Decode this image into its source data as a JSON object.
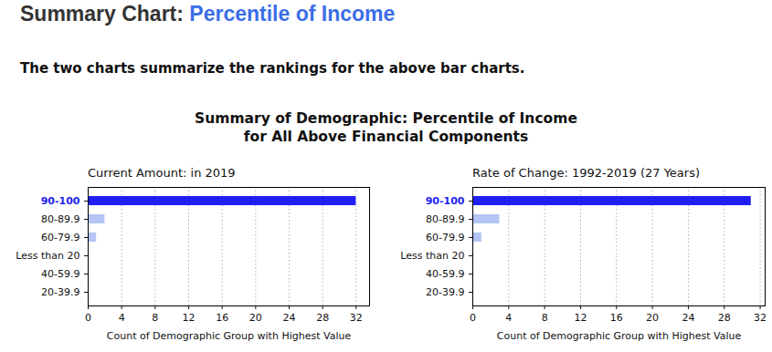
{
  "header": {
    "title": "Summary Chart:",
    "title_highlight": "Percentile of Income",
    "subtitle": "The two charts summarize the rankings for the above bar charts."
  },
  "figure_title": "Summary of Demographic: Percentile of Income\nfor All Above Financial Components",
  "chart_data": [
    {
      "type": "bar",
      "orientation": "horizontal",
      "title": "Current Amount: in 2019",
      "categories": [
        "90-100",
        "80-89.9",
        "60-79.9",
        "Less than 20",
        "40-59.9",
        "20-39.9"
      ],
      "values": [
        32,
        2,
        1,
        0,
        0,
        0
      ],
      "colors": [
        "#1f1ff5",
        "#b3c4f5",
        "#b3c4f5",
        "#b3c4f5",
        "#b3c4f5",
        "#b3c4f5"
      ],
      "xlabel": "Count of Demographic Group with Highest Value",
      "xlim": [
        0,
        33.6
      ],
      "xticks": [
        0,
        4,
        8,
        12,
        16,
        20,
        24,
        28,
        32
      ],
      "grid": true
    },
    {
      "type": "bar",
      "orientation": "horizontal",
      "title": "Rate of Change: 1992-2019 (27 Years)",
      "categories": [
        "90-100",
        "80-89.9",
        "60-79.9",
        "Less than 20",
        "40-59.9",
        "20-39.9"
      ],
      "values": [
        31,
        3,
        1,
        0,
        0,
        0
      ],
      "colors": [
        "#1f1ff5",
        "#b3c4f5",
        "#b3c4f5",
        "#b3c4f5",
        "#b3c4f5",
        "#b3c4f5"
      ],
      "xlabel": "Count of Demographic Group with Highest Value",
      "xlim": [
        0,
        32.55
      ],
      "xticks": [
        0,
        4,
        8,
        12,
        16,
        20,
        24,
        28,
        32
      ],
      "grid": true
    }
  ]
}
